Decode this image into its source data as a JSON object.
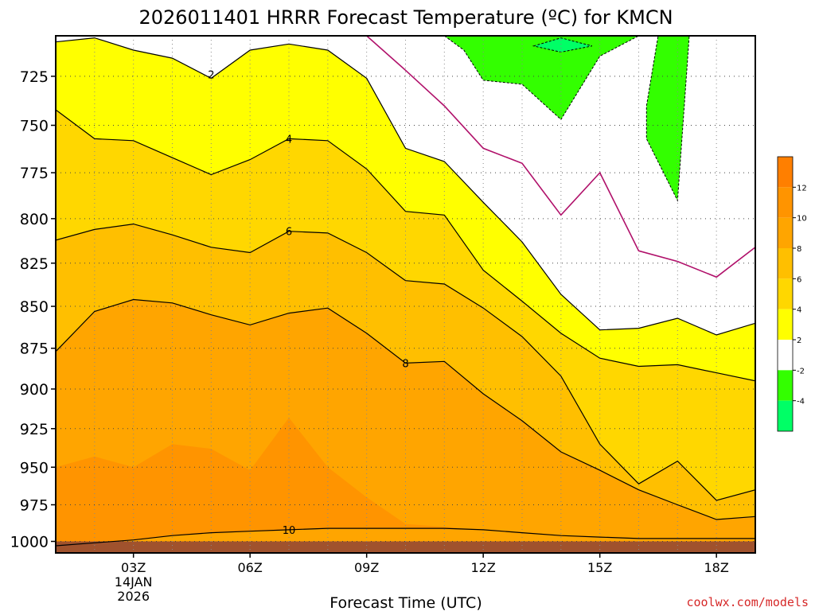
{
  "chart_data": {
    "type": "heatmap",
    "title": "2026011401 HRRR Forecast Temperature (ºC) for KMCN",
    "xlabel": "Forecast Time (UTC)",
    "ylabel": "",
    "credit": "coolwx.com/models",
    "x_range_hours": [
      1,
      19
    ],
    "y_range_hPa": [
      1008,
      705
    ],
    "y_scale": "log",
    "grid": true,
    "x_ticks": [
      {
        "hour": 3,
        "label": "03Z",
        "sub1": "14JAN",
        "sub2": "2026"
      },
      {
        "hour": 6,
        "label": "06Z"
      },
      {
        "hour": 9,
        "label": "09Z"
      },
      {
        "hour": 12,
        "label": "12Z"
      },
      {
        "hour": 15,
        "label": "15Z"
      },
      {
        "hour": 18,
        "label": "18Z"
      }
    ],
    "y_ticks": [
      725,
      750,
      775,
      800,
      825,
      850,
      875,
      900,
      925,
      950,
      975,
      1000
    ],
    "colorbar": {
      "placement": "right",
      "ticks": [
        12,
        10,
        8,
        6,
        4,
        2,
        -2,
        -4
      ],
      "bins": [
        {
          "from": 12,
          "to": 14,
          "color": "#ff7f00"
        },
        {
          "from": 10,
          "to": 12,
          "color": "#ff9400"
        },
        {
          "from": 8,
          "to": 10,
          "color": "#ffa500"
        },
        {
          "from": 6,
          "to": 8,
          "color": "#ffbf00"
        },
        {
          "from": 4,
          "to": 6,
          "color": "#ffd700"
        },
        {
          "from": 2,
          "to": 4,
          "color": "#ffff00"
        },
        {
          "from": -2,
          "to": 2,
          "color": "#ffffff"
        },
        {
          "from": -4,
          "to": -2,
          "color": "#33ff00"
        },
        {
          "from": -6,
          "to": -4,
          "color": "#00ff66"
        }
      ]
    },
    "ground_color": "#a0522d",
    "ground_pressure_hPa": 1000,
    "freezing_line_color": "#b0106a",
    "series": [
      {
        "name": "10",
        "fill": "#ff7f00",
        "upper": [
          [
            1,
            950
          ],
          [
            2,
            943
          ],
          [
            3,
            950
          ],
          [
            4,
            935
          ],
          [
            5,
            938
          ],
          [
            6,
            952
          ],
          [
            7,
            918
          ],
          [
            8,
            950
          ],
          [
            9,
            970
          ],
          [
            10,
            988
          ],
          [
            11,
            990
          ],
          [
            12,
            992
          ],
          [
            13,
            994
          ],
          [
            14,
            996
          ],
          [
            15,
            997
          ],
          [
            16,
            998
          ],
          [
            17,
            998
          ],
          [
            18,
            998
          ],
          [
            19,
            998
          ]
        ],
        "lower": [
          [
            1,
            1003
          ],
          [
            2,
            1001
          ],
          [
            3,
            999
          ],
          [
            4,
            996
          ],
          [
            5,
            994
          ],
          [
            6,
            993
          ],
          [
            7,
            992
          ],
          [
            8,
            991
          ],
          [
            9,
            991
          ],
          [
            10,
            991
          ],
          [
            11,
            991
          ],
          [
            12,
            992
          ],
          [
            13,
            994
          ],
          [
            14,
            996
          ],
          [
            15,
            997
          ],
          [
            16,
            998
          ],
          [
            17,
            998
          ],
          [
            18,
            998
          ],
          [
            19,
            998
          ]
        ]
      },
      {
        "name": "4",
        "fill": "#ffd700",
        "upper": [
          [
            1,
            742
          ],
          [
            2,
            757
          ],
          [
            3,
            758
          ],
          [
            4,
            767
          ],
          [
            5,
            776
          ],
          [
            6,
            768
          ],
          [
            7,
            757
          ],
          [
            8,
            758
          ],
          [
            9,
            773
          ],
          [
            10,
            796
          ],
          [
            11,
            798
          ],
          [
            12,
            829
          ],
          [
            13,
            847
          ],
          [
            14,
            866
          ],
          [
            15,
            881
          ],
          [
            16,
            886
          ],
          [
            17,
            885
          ],
          [
            18,
            890
          ],
          [
            19,
            895
          ]
        ],
        "lower": [
          [
            1,
            812
          ],
          [
            2,
            806
          ],
          [
            3,
            803
          ],
          [
            4,
            809
          ],
          [
            5,
            816
          ],
          [
            6,
            819
          ],
          [
            7,
            807
          ],
          [
            8,
            808
          ],
          [
            9,
            819
          ],
          [
            10,
            835
          ],
          [
            11,
            837
          ],
          [
            12,
            851
          ],
          [
            13,
            868
          ],
          [
            14,
            892
          ],
          [
            15,
            935
          ],
          [
            16,
            961
          ],
          [
            17,
            946
          ],
          [
            18,
            972
          ],
          [
            19,
            965
          ]
        ]
      }
    ],
    "contours": [
      {
        "name": "2",
        "label": "2",
        "label_at": [
          5,
          724
        ],
        "points": [
          [
            1,
            708
          ],
          [
            2,
            706
          ],
          [
            3,
            712
          ],
          [
            4,
            716
          ],
          [
            5,
            726
          ],
          [
            6,
            712
          ],
          [
            7,
            709
          ],
          [
            8,
            712
          ],
          [
            9,
            726
          ],
          [
            10,
            762
          ],
          [
            11,
            769
          ],
          [
            12,
            791
          ],
          [
            13,
            813
          ],
          [
            14,
            843
          ],
          [
            15,
            864
          ],
          [
            16,
            863
          ],
          [
            17,
            857
          ],
          [
            18,
            867
          ],
          [
            19,
            860
          ]
        ]
      },
      {
        "name": "4",
        "label": "4",
        "label_at": [
          7,
          757
        ],
        "points": [
          [
            1,
            742
          ],
          [
            2,
            757
          ],
          [
            3,
            758
          ],
          [
            4,
            767
          ],
          [
            5,
            776
          ],
          [
            6,
            768
          ],
          [
            7,
            757
          ],
          [
            8,
            758
          ],
          [
            9,
            773
          ],
          [
            10,
            796
          ],
          [
            11,
            798
          ],
          [
            12,
            829
          ],
          [
            13,
            847
          ],
          [
            14,
            866
          ],
          [
            15,
            881
          ],
          [
            16,
            886
          ],
          [
            17,
            885
          ],
          [
            18,
            890
          ],
          [
            19,
            895
          ]
        ]
      },
      {
        "name": "6",
        "label": "6",
        "label_at": [
          7,
          807
        ],
        "points": [
          [
            1,
            812
          ],
          [
            2,
            806
          ],
          [
            3,
            803
          ],
          [
            4,
            809
          ],
          [
            5,
            816
          ],
          [
            6,
            819
          ],
          [
            7,
            807
          ],
          [
            8,
            808
          ],
          [
            9,
            819
          ],
          [
            10,
            835
          ],
          [
            11,
            837
          ],
          [
            12,
            851
          ],
          [
            13,
            868
          ],
          [
            14,
            892
          ],
          [
            15,
            935
          ],
          [
            16,
            961
          ],
          [
            17,
            946
          ],
          [
            18,
            972
          ],
          [
            19,
            965
          ]
        ]
      },
      {
        "name": "8",
        "label": "8",
        "label_at": [
          10,
          884
        ],
        "points": [
          [
            1,
            877
          ],
          [
            2,
            853
          ],
          [
            3,
            846
          ],
          [
            4,
            848
          ],
          [
            5,
            855
          ],
          [
            6,
            861
          ],
          [
            7,
            854
          ],
          [
            8,
            851
          ],
          [
            9,
            866
          ],
          [
            10,
            884
          ],
          [
            11,
            883
          ],
          [
            12,
            903
          ],
          [
            13,
            920
          ],
          [
            14,
            940
          ],
          [
            15,
            952
          ],
          [
            16,
            965
          ],
          [
            17,
            975
          ],
          [
            18,
            985
          ],
          [
            19,
            983
          ]
        ]
      },
      {
        "name": "10",
        "label": "10",
        "label_at": [
          7,
          992
        ],
        "points": [
          [
            1,
            1003
          ],
          [
            2,
            1001
          ],
          [
            3,
            999
          ],
          [
            4,
            996
          ],
          [
            5,
            994
          ],
          [
            6,
            993
          ],
          [
            7,
            992
          ],
          [
            8,
            991
          ],
          [
            9,
            991
          ],
          [
            10,
            991
          ],
          [
            11,
            991
          ],
          [
            12,
            992
          ],
          [
            13,
            994
          ],
          [
            14,
            996
          ],
          [
            15,
            997
          ],
          [
            16,
            998
          ],
          [
            17,
            998
          ],
          [
            18,
            998
          ],
          [
            19,
            998
          ]
        ]
      }
    ],
    "freezing_line": [
      [
        9,
        705
      ],
      [
        10,
        722
      ],
      [
        11,
        740
      ],
      [
        12,
        762
      ],
      [
        13,
        770
      ],
      [
        14,
        798
      ],
      [
        15,
        775
      ],
      [
        16,
        818
      ],
      [
        17,
        824
      ],
      [
        18,
        833
      ],
      [
        19,
        816
      ]
    ],
    "cold_pockets": [
      {
        "name": "-2",
        "fill": "#33ff00",
        "points": [
          [
            11,
            705
          ],
          [
            16,
            705
          ],
          [
            15,
            715
          ],
          [
            14,
            747
          ],
          [
            13,
            729
          ],
          [
            12,
            727
          ],
          [
            11.5,
            712
          ]
        ]
      },
      {
        "name": "-2",
        "fill": "#33ff00",
        "points": [
          [
            16.5,
            705
          ],
          [
            17.3,
            705
          ],
          [
            17,
            790
          ],
          [
            16.2,
            757
          ],
          [
            16.2,
            740
          ]
        ]
      },
      {
        "name": "-4",
        "fill": "#00ff66",
        "points": [
          [
            13.3,
            710
          ],
          [
            14,
            706
          ],
          [
            14.8,
            710
          ],
          [
            14,
            713
          ]
        ]
      }
    ]
  }
}
